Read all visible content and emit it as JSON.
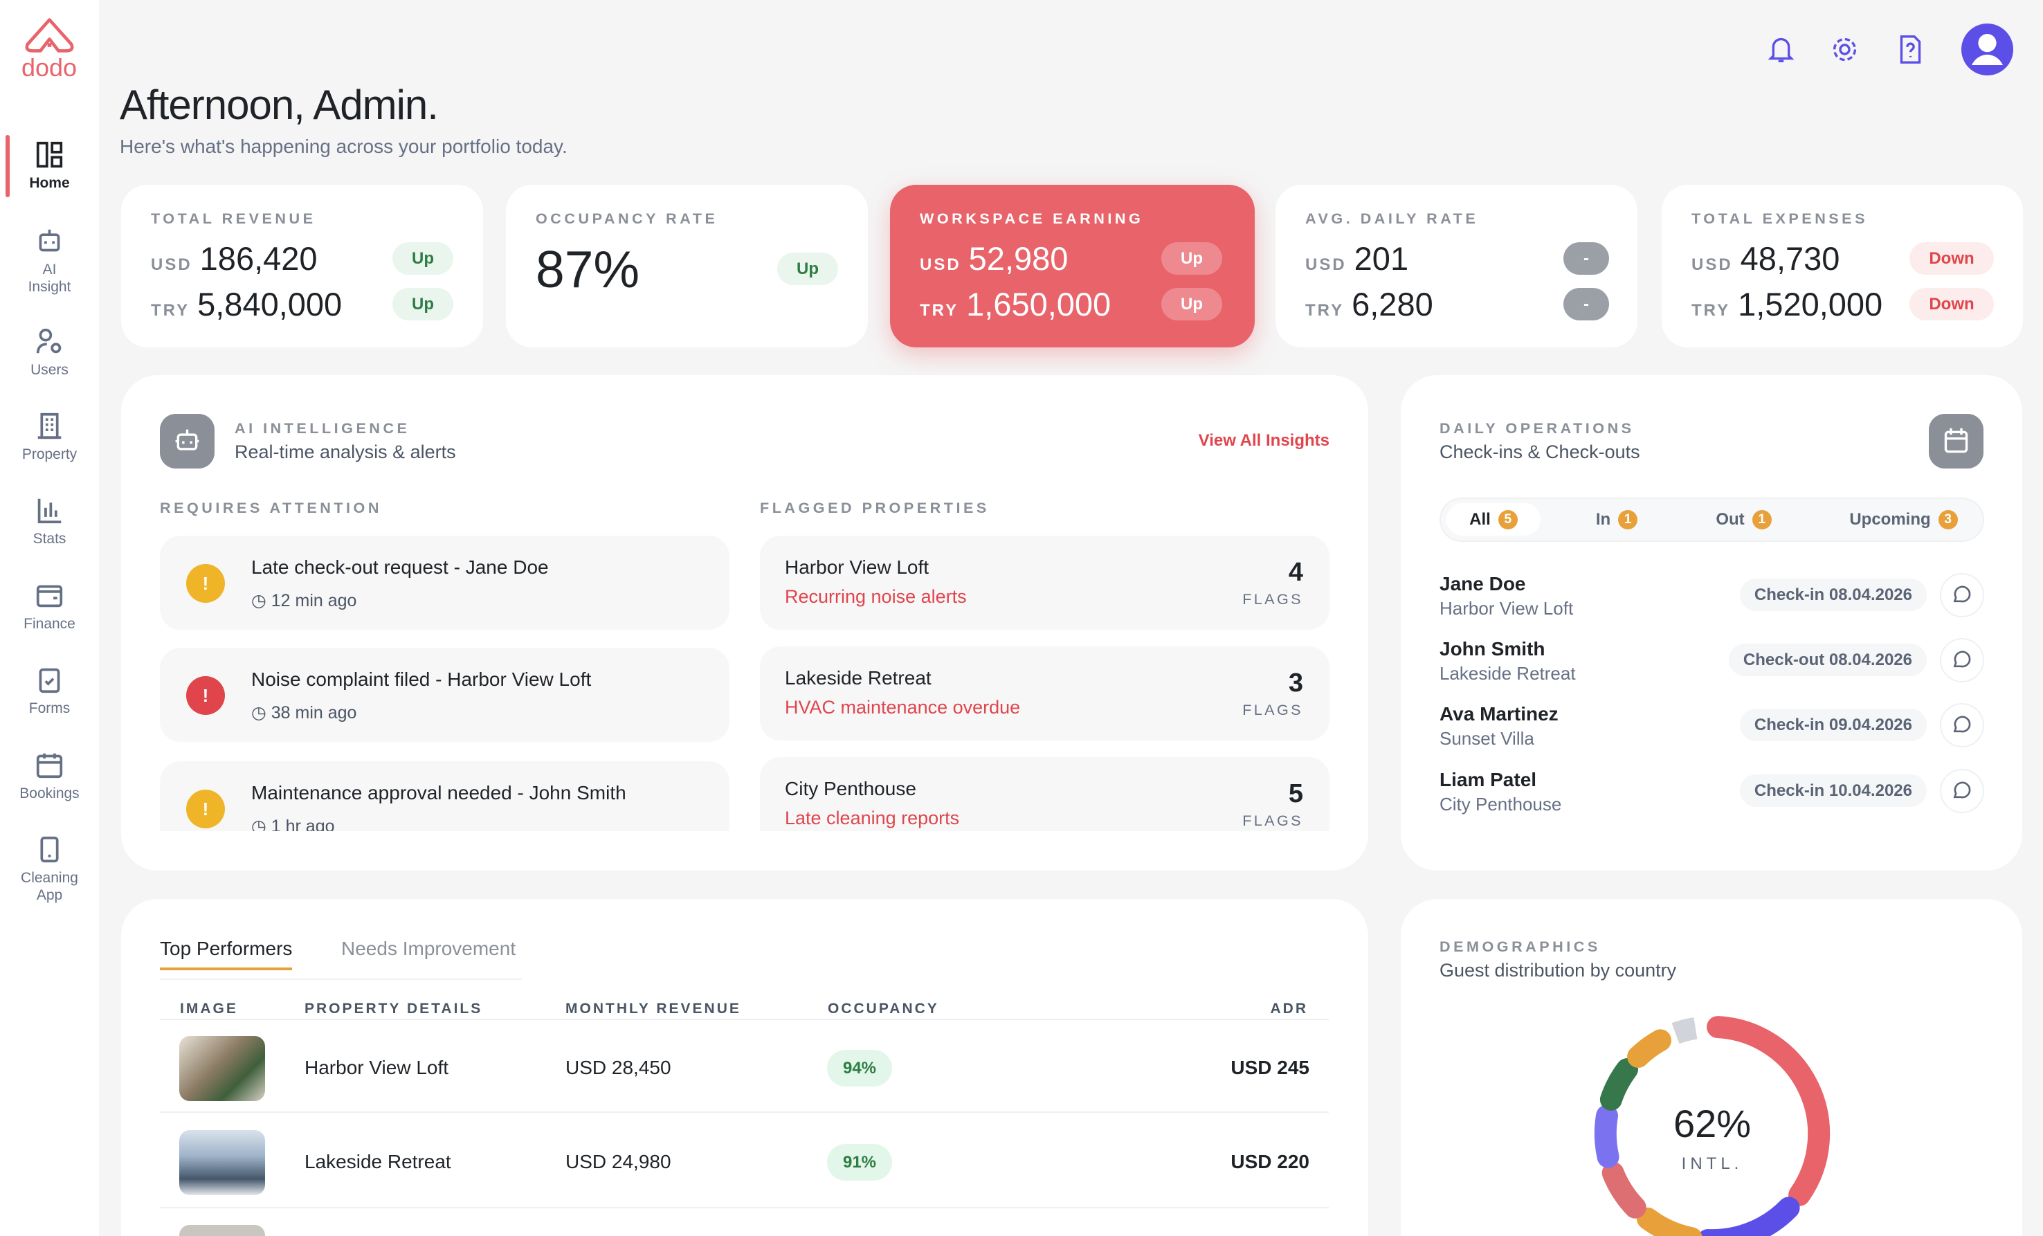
{
  "brand": {
    "name": "dodo",
    "color": "#e8636a"
  },
  "sidebar": {
    "items": [
      {
        "label": "Home",
        "icon": "dashboard-icon",
        "active": true
      },
      {
        "label": "AI Insight",
        "icon": "robot-icon"
      },
      {
        "label": "Users",
        "icon": "users-gear-icon"
      },
      {
        "label": "Property",
        "icon": "building-icon"
      },
      {
        "label": "Stats",
        "icon": "bar-chart-icon"
      },
      {
        "label": "Finance",
        "icon": "wallet-icon"
      },
      {
        "label": "Forms",
        "icon": "clipboard-icon"
      },
      {
        "label": "Bookings",
        "icon": "calendar-icon"
      },
      {
        "label": "Cleaning App",
        "icon": "mobile-icon"
      }
    ]
  },
  "header": {
    "title": "Afternoon, Admin.",
    "subtitle": "Here's what's happening across your portfolio today.",
    "icons": [
      "bell-icon",
      "gear-icon",
      "help-icon",
      "avatar-icon"
    ]
  },
  "kpis": [
    {
      "label": "TOTAL REVENUE",
      "rows": [
        {
          "cur": "USD",
          "value": "186,420",
          "trend": "Up"
        },
        {
          "cur": "TRY",
          "value": "5,840,000",
          "trend": "Up"
        }
      ]
    },
    {
      "label": "OCCUPANCY RATE",
      "value": "87%",
      "trend": "Up"
    },
    {
      "label": "WORKSPACE EARNING",
      "highlight": "#e8636a",
      "rows": [
        {
          "cur": "USD",
          "value": "52,980",
          "trend": "Up"
        },
        {
          "cur": "TRY",
          "value": "1,650,000",
          "trend": "Up"
        }
      ]
    },
    {
      "label": "AVG. DAILY RATE",
      "rows": [
        {
          "cur": "USD",
          "value": "201",
          "trend": "-"
        },
        {
          "cur": "TRY",
          "value": "6,280",
          "trend": "-"
        }
      ]
    },
    {
      "label": "TOTAL EXPENSES",
      "rows": [
        {
          "cur": "USD",
          "value": "48,730",
          "trend": "Down"
        },
        {
          "cur": "TRY",
          "value": "1,520,000",
          "trend": "Down"
        }
      ]
    }
  ],
  "ai": {
    "label": "AI INTELLIGENCE",
    "subtitle": "Real-time analysis & alerts",
    "link": "View All Insights",
    "attention_label": "REQUIRES ATTENTION",
    "flagged_label": "FLAGGED PROPERTIES",
    "alerts": [
      {
        "title": "Late check-out request - Jane Doe",
        "time": "12 min ago",
        "level": "warning",
        "color": "#f0b429"
      },
      {
        "title": "Noise complaint filed - Harbor View Loft",
        "time": "38 min ago",
        "level": "error",
        "color": "#e0454c"
      },
      {
        "title": "Maintenance approval needed - John Smith",
        "time": "1 hr ago",
        "level": "warning",
        "color": "#f0b429"
      }
    ],
    "flagged": [
      {
        "name": "Harbor View Loft",
        "issue": "Recurring noise alerts",
        "count": "4",
        "unit": "FLAGS"
      },
      {
        "name": "Lakeside Retreat",
        "issue": "HVAC maintenance overdue",
        "count": "3",
        "unit": "FLAGS"
      },
      {
        "name": "City Penthouse",
        "issue": "Late cleaning reports",
        "count": "5",
        "unit": "FLAGS"
      }
    ]
  },
  "ops": {
    "label": "DAILY OPERATIONS",
    "subtitle": "Check-ins & Check-outs",
    "tabs": [
      {
        "label": "All",
        "count": "5"
      },
      {
        "label": "In",
        "count": "1"
      },
      {
        "label": "Out",
        "count": "1"
      },
      {
        "label": "Upcoming",
        "count": "3"
      }
    ],
    "guests": [
      {
        "name": "Jane Doe",
        "property": "Harbor View Loft",
        "status": "Check-in 08.04.2026"
      },
      {
        "name": "John Smith",
        "property": "Lakeside Retreat",
        "status": "Check-out 08.04.2026"
      },
      {
        "name": "Ava Martinez",
        "property": "Sunset Villa",
        "status": "Check-in 09.04.2026"
      },
      {
        "name": "Liam Patel",
        "property": "City Penthouse",
        "status": "Check-in 10.04.2026"
      }
    ]
  },
  "performers": {
    "tabs": [
      "Top Performers",
      "Needs Improvement"
    ],
    "columns": [
      "IMAGE",
      "PROPERTY DETAILS",
      "MONTHLY REVENUE",
      "OCCUPANCY",
      "ADR"
    ],
    "rows": [
      {
        "name": "Harbor View Loft",
        "revenue": "USD 28,450",
        "occupancy": "94%",
        "adr": "USD 245"
      },
      {
        "name": "Lakeside Retreat",
        "revenue": "USD 24,980",
        "occupancy": "91%",
        "adr": "USD 220"
      }
    ]
  },
  "demographics": {
    "label": "DEMOGRAPHICS",
    "subtitle": "Guest distribution by country",
    "center_value": "62%",
    "center_label": "INTL.",
    "segments": [
      {
        "value": 33,
        "color": "#e8636a"
      },
      {
        "value": 13,
        "color": "#5b4fe8"
      },
      {
        "value": 7,
        "color": "#e8a13a"
      },
      {
        "value": 6,
        "color": "#dd6f72"
      },
      {
        "value": 6,
        "color": "#7b72f0"
      },
      {
        "value": 5,
        "color": "#36784c"
      },
      {
        "value": 4,
        "color": "#e8a13a"
      },
      {
        "value": 3,
        "color": "#d1d5db"
      }
    ]
  }
}
